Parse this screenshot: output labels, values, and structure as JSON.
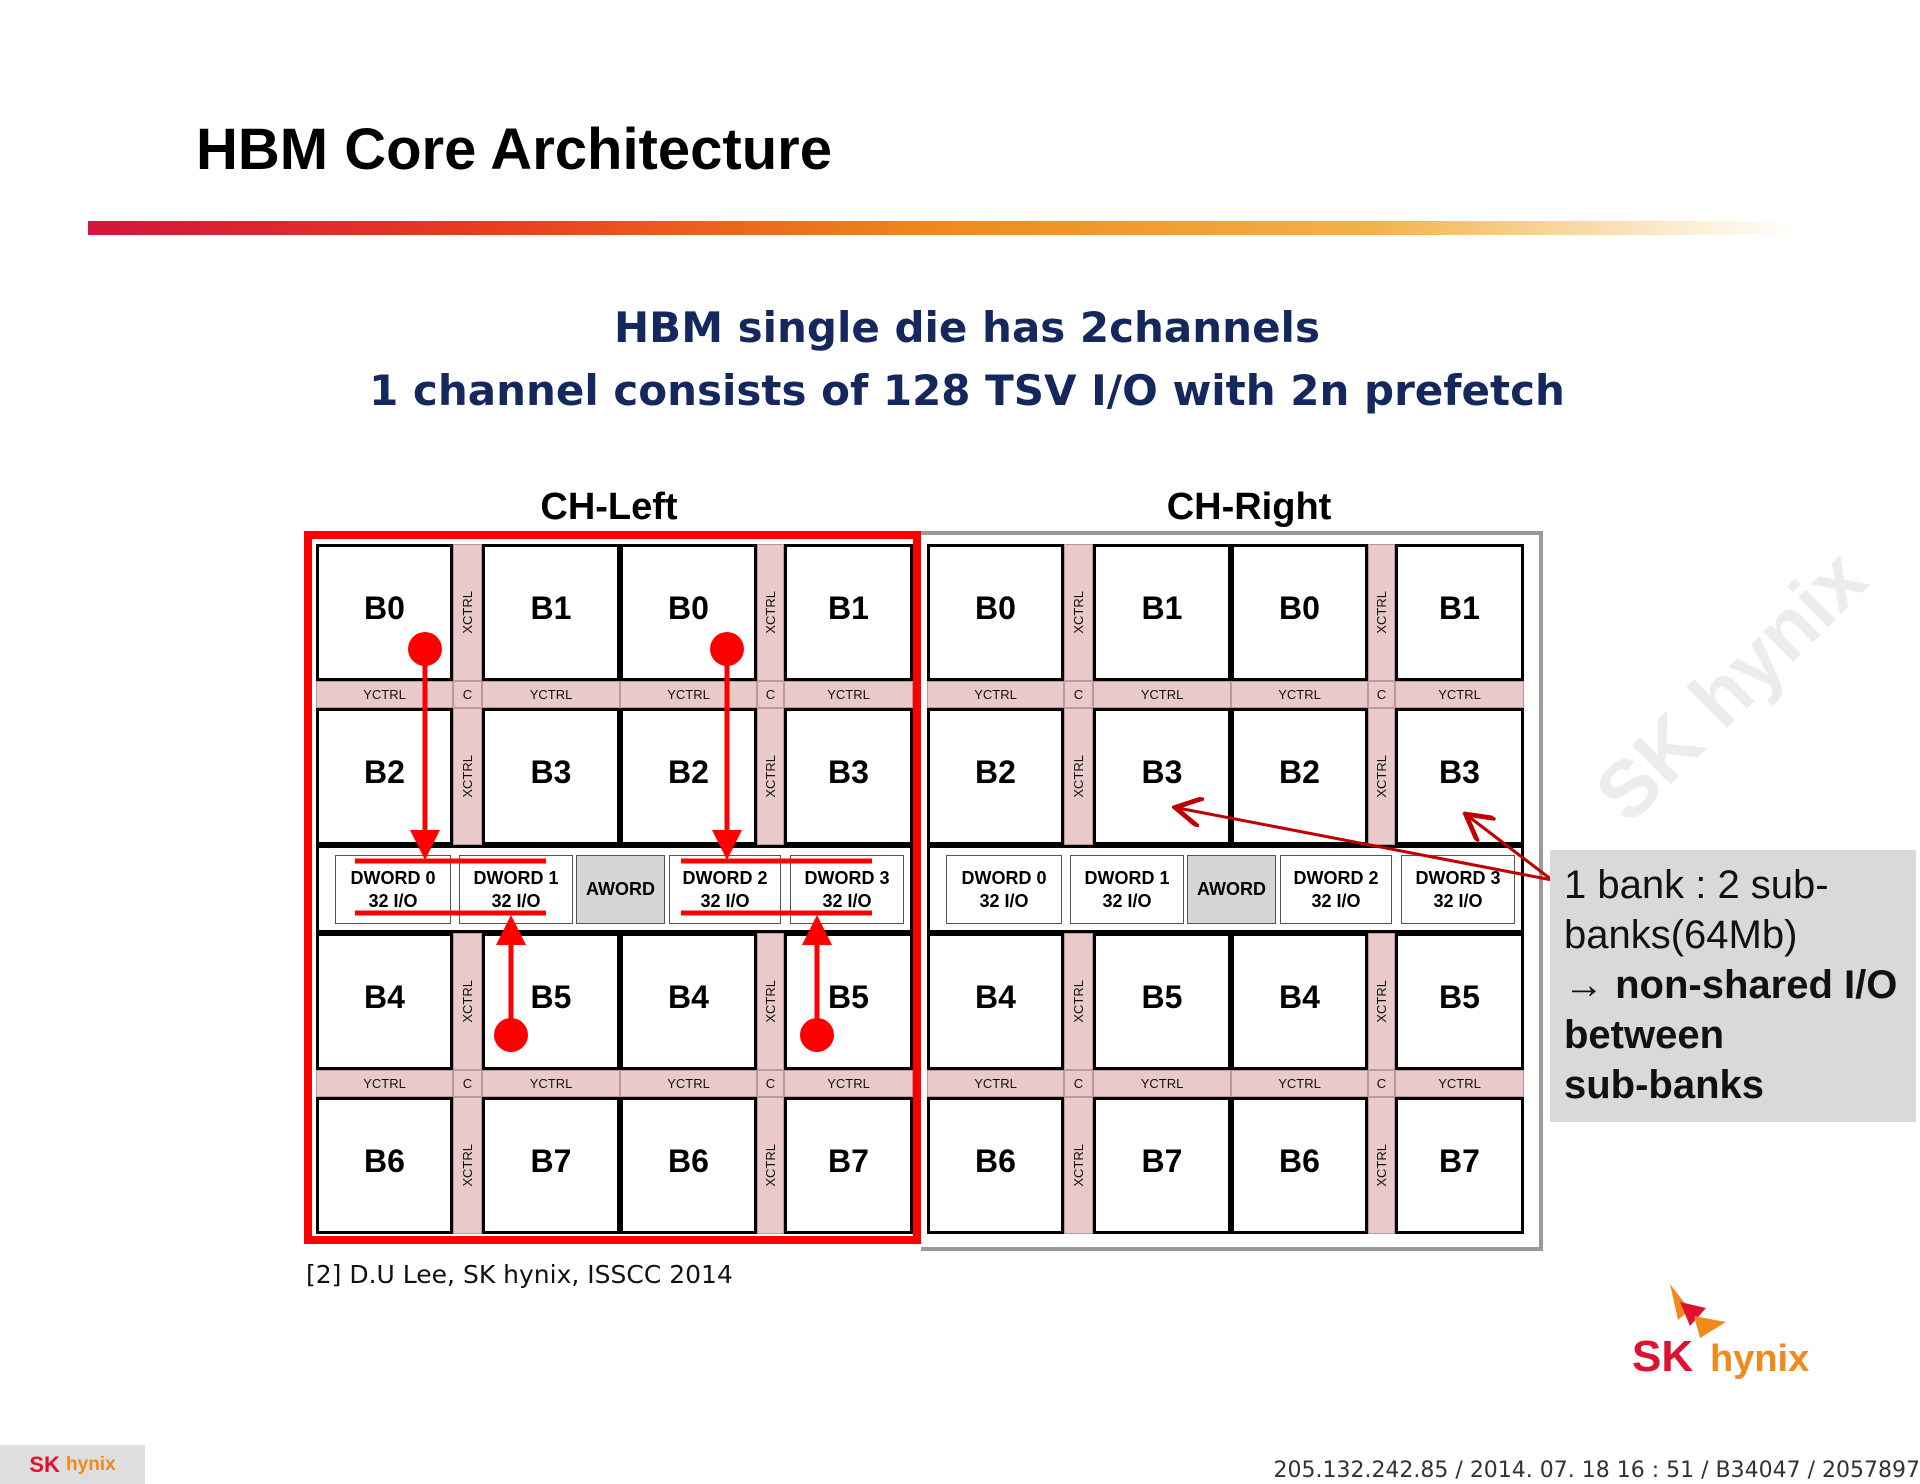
{
  "title": "HBM Core Architecture",
  "subtitle": {
    "line1": "HBM single die has 2channels",
    "line2": "1 channel consists of 128 TSV I/O with 2n prefetch"
  },
  "controls": {
    "xctrl": "XCTRL",
    "yctrl": "YCTRL",
    "c": "C"
  },
  "channels": [
    {
      "label": "CH-Left",
      "highlighted": true,
      "banks": [
        [
          "B0",
          "B1",
          "B0",
          "B1"
        ],
        [
          "B2",
          "B3",
          "B2",
          "B3"
        ],
        [
          "B4",
          "B5",
          "B4",
          "B5"
        ],
        [
          "B6",
          "B7",
          "B6",
          "B7"
        ]
      ],
      "io": [
        "DWORD 0\n32 I/O",
        "DWORD 1\n32 I/O",
        "AWORD",
        "DWORD 2\n32 I/O",
        "DWORD 3\n32 I/O"
      ]
    },
    {
      "label": "CH-Right",
      "highlighted": false,
      "banks": [
        [
          "B0",
          "B1",
          "B0",
          "B1"
        ],
        [
          "B2",
          "B3",
          "B2",
          "B3"
        ],
        [
          "B4",
          "B5",
          "B4",
          "B5"
        ],
        [
          "B6",
          "B7",
          "B6",
          "B7"
        ]
      ],
      "io": [
        "DWORD 0\n32 I/O",
        "DWORD 1\n32 I/O",
        "AWORD",
        "DWORD 2\n32 I/O",
        "DWORD 3\n32 I/O"
      ]
    }
  ],
  "callout": {
    "line1": "1 bank : 2 sub-banks(64Mb)",
    "line2": "→ non-shared I/O between",
    "line3": "sub-banks"
  },
  "citation": "[2] D.U Lee, SK hynix,  ISSCC 2014",
  "watermark": "SK hynix",
  "logo": {
    "sk": "SK",
    "hynix": "hynix"
  },
  "footer": "205.132.242.85 / 2014. 07. 18  16 : 51 / B34047 / 2057897",
  "colors": {
    "highlight": "#ff0000",
    "callout_arrow": "#c00000",
    "title_navy": "#14285e",
    "ctrl_pink": "#e9c9c9",
    "sk_red": "#e0102f",
    "hynix_orange": "#f08a1c"
  }
}
